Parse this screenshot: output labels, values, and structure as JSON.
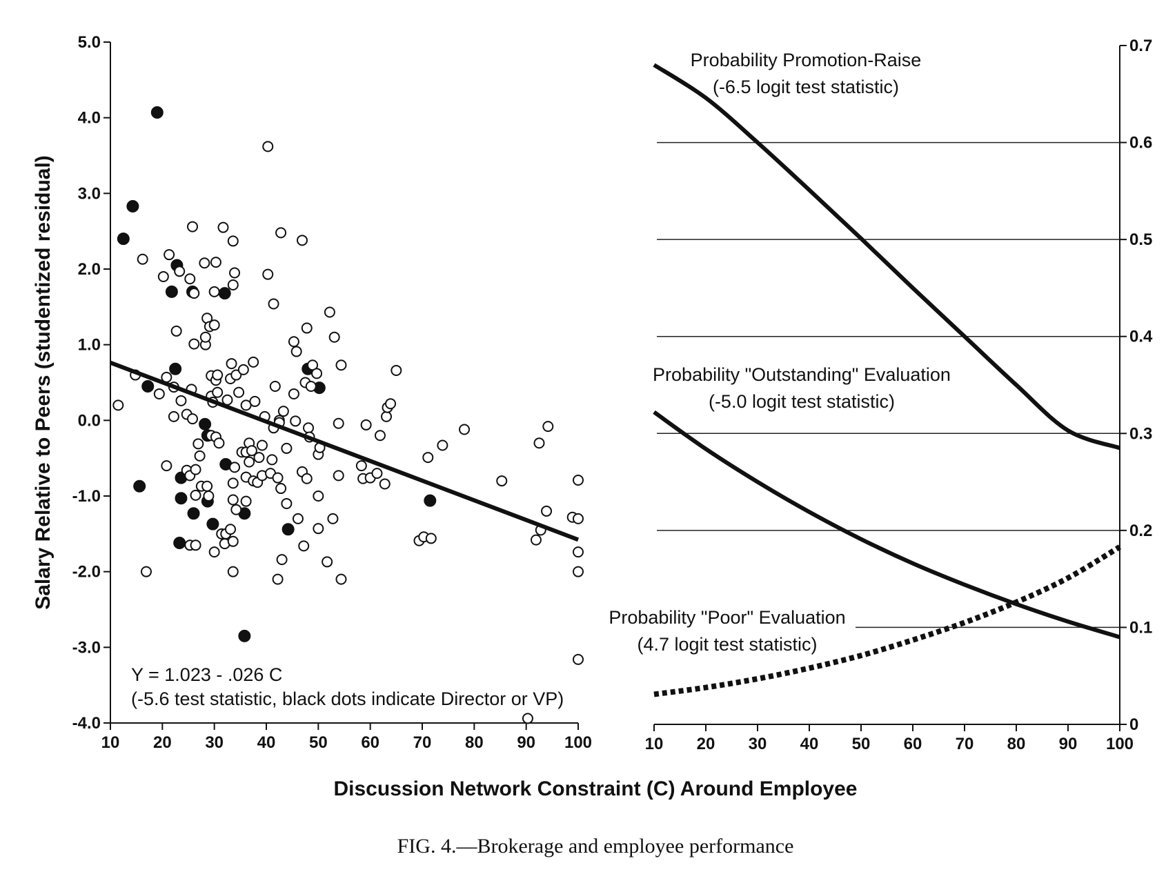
{
  "caption": "FIG. 4.—Brokerage and employee performance",
  "shared_xlabel": "Discussion Network Constraint (C) Around Employee",
  "chart_data": [
    {
      "type": "scatter",
      "ylabel": "Salary Relative to Peers (studentized residual)",
      "xlim": [
        10,
        100
      ],
      "ylim": [
        -4.0,
        5.0
      ],
      "x_ticks": [
        "10",
        "20",
        "30",
        "40",
        "50",
        "60",
        "70",
        "80",
        "90",
        "100"
      ],
      "y_ticks": [
        "-4.0",
        "-3.0",
        "-2.0",
        "-1.0",
        "0.0",
        "1.0",
        "2.0",
        "3.0",
        "4.0",
        "5.0"
      ],
      "annotation_lines": [
        "Y = 1.023 - .026 C",
        "(-5.6 test statistic, black dots indicate Director or VP)"
      ],
      "regression": {
        "intercept": 1.023,
        "slope": -0.026,
        "x_range": [
          10,
          100
        ]
      },
      "series": [
        {
          "name": "Director or VP",
          "marker": "filled",
          "points": [
            [
              19,
              4.07
            ],
            [
              14.3,
              2.83
            ],
            [
              12.5,
              2.4
            ],
            [
              22.8,
              2.05
            ],
            [
              21.8,
              1.7
            ],
            [
              25.8,
              1.7
            ],
            [
              32,
              1.68
            ],
            [
              22.5,
              0.68
            ],
            [
              17.2,
              0.45
            ],
            [
              48,
              0.68
            ],
            [
              50.2,
              0.43
            ],
            [
              28.2,
              -0.05
            ],
            [
              28.7,
              -0.2
            ],
            [
              32.2,
              -0.58
            ],
            [
              23.6,
              -0.76
            ],
            [
              23.6,
              -1.03
            ],
            [
              15.6,
              -0.87
            ],
            [
              28.7,
              -1.07
            ],
            [
              26,
              -1.23
            ],
            [
              35.8,
              -1.23
            ],
            [
              29.7,
              -1.37
            ],
            [
              23.3,
              -1.62
            ],
            [
              44.2,
              -1.44
            ],
            [
              71.5,
              -1.06
            ],
            [
              35.8,
              -2.85
            ]
          ]
        },
        {
          "name": "Other employees",
          "marker": "open",
          "points": [
            [
              11.5,
              0.2
            ],
            [
              14.8,
              0.6
            ],
            [
              16.2,
              2.13
            ],
            [
              16.9,
              -2.0
            ],
            [
              19.4,
              0.35
            ],
            [
              20.2,
              1.9
            ],
            [
              20.8,
              0.57
            ],
            [
              21.3,
              2.19
            ],
            [
              20.8,
              -0.6
            ],
            [
              22.2,
              0.44
            ],
            [
              22.2,
              0.05
            ],
            [
              22.7,
              1.18
            ],
            [
              23.3,
              1.97
            ],
            [
              23.6,
              0.26
            ],
            [
              24.7,
              0.08
            ],
            [
              24.7,
              -0.66
            ],
            [
              25.3,
              1.87
            ],
            [
              25.3,
              -0.73
            ],
            [
              25.6,
              0.41
            ],
            [
              25.3,
              -1.65
            ],
            [
              25.8,
              0.02
            ],
            [
              25.8,
              2.56
            ],
            [
              26.1,
              1.68
            ],
            [
              26.4,
              -0.99
            ],
            [
              26.4,
              -0.65
            ],
            [
              26.4,
              -1.65
            ],
            [
              26.1,
              1.01
            ],
            [
              26.9,
              -0.31
            ],
            [
              27.2,
              -0.47
            ],
            [
              27.5,
              -0.87
            ],
            [
              28.1,
              2.08
            ],
            [
              28.3,
              1.0
            ],
            [
              28.3,
              1.1
            ],
            [
              28.6,
              1.35
            ],
            [
              28.6,
              -0.87
            ],
            [
              28.9,
              -1.0
            ],
            [
              29.1,
              1.24
            ],
            [
              29.4,
              0.59
            ],
            [
              29.4,
              0.32
            ],
            [
              29.4,
              -0.2
            ],
            [
              29.7,
              0.24
            ],
            [
              30.0,
              1.7
            ],
            [
              30.0,
              1.26
            ],
            [
              30.3,
              2.09
            ],
            [
              30.3,
              -0.22
            ],
            [
              30.0,
              -1.74
            ],
            [
              30.3,
              0.53
            ],
            [
              30.6,
              0.6
            ],
            [
              30.6,
              0.37
            ],
            [
              30.9,
              -0.3
            ],
            [
              31.4,
              -1.5
            ],
            [
              31.7,
              2.55
            ],
            [
              32.0,
              -1.63
            ],
            [
              32.2,
              -1.5
            ],
            [
              32.5,
              0.27
            ],
            [
              33.1,
              0.55
            ],
            [
              33.1,
              -1.44
            ],
            [
              33.3,
              0.75
            ],
            [
              33.6,
              2.37
            ],
            [
              33.9,
              -0.62
            ],
            [
              33.6,
              1.79
            ],
            [
              33.9,
              1.95
            ],
            [
              33.6,
              -1.6
            ],
            [
              33.6,
              -0.83
            ],
            [
              33.6,
              -1.05
            ],
            [
              34.2,
              -1.18
            ],
            [
              33.6,
              -2.0
            ],
            [
              34.2,
              0.6
            ],
            [
              34.7,
              0.37
            ],
            [
              35.3,
              -0.42
            ],
            [
              35.6,
              0.67
            ],
            [
              36.1,
              0.2
            ],
            [
              36.1,
              -0.42
            ],
            [
              36.1,
              -0.75
            ],
            [
              36.1,
              -1.07
            ],
            [
              36.7,
              -0.3
            ],
            [
              36.7,
              -0.55
            ],
            [
              37.2,
              -0.4
            ],
            [
              37.5,
              0.77
            ],
            [
              37.5,
              -0.8
            ],
            [
              37.8,
              0.25
            ],
            [
              38.3,
              -0.82
            ],
            [
              38.6,
              -0.49
            ],
            [
              39.2,
              -0.73
            ],
            [
              39.2,
              -0.33
            ],
            [
              39.7,
              0.05
            ],
            [
              40.3,
              3.62
            ],
            [
              40.3,
              1.93
            ],
            [
              40.8,
              -0.7
            ],
            [
              41.1,
              -0.52
            ],
            [
              41.4,
              -0.1
            ],
            [
              41.7,
              0.45
            ],
            [
              41.4,
              1.54
            ],
            [
              42.2,
              -0.76
            ],
            [
              42.2,
              -2.1
            ],
            [
              42.5,
              0.0
            ],
            [
              42.8,
              2.48
            ],
            [
              42.5,
              -0.03
            ],
            [
              42.8,
              -0.9
            ],
            [
              43.0,
              -1.84
            ],
            [
              43.3,
              0.12
            ],
            [
              43.9,
              -0.37
            ],
            [
              43.9,
              -1.1
            ],
            [
              45.3,
              1.04
            ],
            [
              45.3,
              0.35
            ],
            [
              45.8,
              0.91
            ],
            [
              46.1,
              -1.3
            ],
            [
              45.6,
              -0.01
            ],
            [
              46.9,
              2.38
            ],
            [
              46.9,
              -0.68
            ],
            [
              47.2,
              -1.66
            ],
            [
              47.5,
              0.5
            ],
            [
              47.8,
              1.22
            ],
            [
              47.8,
              -0.77
            ],
            [
              48.1,
              -0.1
            ],
            [
              48.3,
              -0.22
            ],
            [
              48.6,
              0.45
            ],
            [
              48.9,
              0.73
            ],
            [
              49.7,
              0.62
            ],
            [
              50.0,
              -0.45
            ],
            [
              50.0,
              -1.0
            ],
            [
              50.0,
              -1.43
            ],
            [
              50.3,
              -0.36
            ],
            [
              51.7,
              -1.87
            ],
            [
              52.2,
              1.43
            ],
            [
              52.8,
              -1.3
            ],
            [
              53.1,
              1.1
            ],
            [
              53.9,
              -0.04
            ],
            [
              53.9,
              -0.73
            ],
            [
              54.4,
              0.73
            ],
            [
              54.4,
              -2.1
            ],
            [
              58.3,
              -0.6
            ],
            [
              58.6,
              -0.77
            ],
            [
              59.2,
              -0.06
            ],
            [
              60.0,
              -0.76
            ],
            [
              61.3,
              -0.7
            ],
            [
              61.9,
              -0.2
            ],
            [
              62.8,
              -0.84
            ],
            [
              63.1,
              0.05
            ],
            [
              63.3,
              0.17
            ],
            [
              63.9,
              0.22
            ],
            [
              65.0,
              0.66
            ],
            [
              69.4,
              -1.59
            ],
            [
              70.3,
              -1.54
            ],
            [
              71.1,
              -0.49
            ],
            [
              71.7,
              -1.56
            ],
            [
              73.9,
              -0.33
            ],
            [
              78.1,
              -0.12
            ],
            [
              85.3,
              -0.8
            ],
            [
              90.3,
              -3.94
            ],
            [
              91.9,
              -1.58
            ],
            [
              92.5,
              -0.3
            ],
            [
              92.8,
              -1.45
            ],
            [
              93.9,
              -1.2
            ],
            [
              94.2,
              -0.08
            ],
            [
              98.9,
              -1.28
            ],
            [
              100.0,
              -1.3
            ],
            [
              100.0,
              -0.79
            ],
            [
              100.0,
              -1.74
            ],
            [
              100.0,
              -2.0
            ],
            [
              100.0,
              -3.16
            ]
          ]
        }
      ]
    },
    {
      "type": "line",
      "xlim": [
        10,
        100
      ],
      "ylim": [
        0,
        0.7
      ],
      "x_ticks": [
        "10",
        "20",
        "30",
        "40",
        "50",
        "60",
        "70",
        "80",
        "90",
        "100"
      ],
      "y_ticks": [
        "0",
        "0.1",
        "0.2",
        "0.3",
        "0.4",
        "0.5",
        "0.6",
        "0.7"
      ],
      "gridlines_y": [
        0.1,
        0.2,
        0.3,
        0.4,
        0.5,
        0.6
      ],
      "series": [
        {
          "name": "Probability Promotion-Raise",
          "label_lines": [
            "Probability Promotion-Raise",
            "(-6.5 logit test statistic)"
          ],
          "style": "solid",
          "x": [
            10,
            20,
            30,
            40,
            50,
            60,
            70,
            80,
            90,
            100
          ],
          "y": [
            0.68,
            0.646,
            0.6,
            0.551,
            0.501,
            0.45,
            0.4,
            0.35,
            0.303,
            0.285
          ]
        },
        {
          "name": "Probability \"Outstanding\" Evaluation",
          "label_lines": [
            "Probability \"Outstanding\" Evaluation",
            "(-5.0 logit test statistic)"
          ],
          "style": "solid",
          "x": [
            10,
            20,
            30,
            40,
            50,
            60,
            70,
            80,
            90,
            100
          ],
          "y": [
            0.322,
            0.284,
            0.25,
            0.219,
            0.191,
            0.166,
            0.144,
            0.124,
            0.106,
            0.09
          ]
        },
        {
          "name": "Probability \"Poor\" Evaluation",
          "label_lines": [
            "Probability \"Poor\" Evaluation",
            "(4.7 logit test statistic)"
          ],
          "style": "dotted",
          "x": [
            10,
            20,
            30,
            40,
            50,
            60,
            70,
            80,
            90,
            100
          ],
          "y": [
            0.031,
            0.038,
            0.047,
            0.058,
            0.071,
            0.087,
            0.105,
            0.126,
            0.151,
            0.183
          ]
        }
      ]
    }
  ]
}
